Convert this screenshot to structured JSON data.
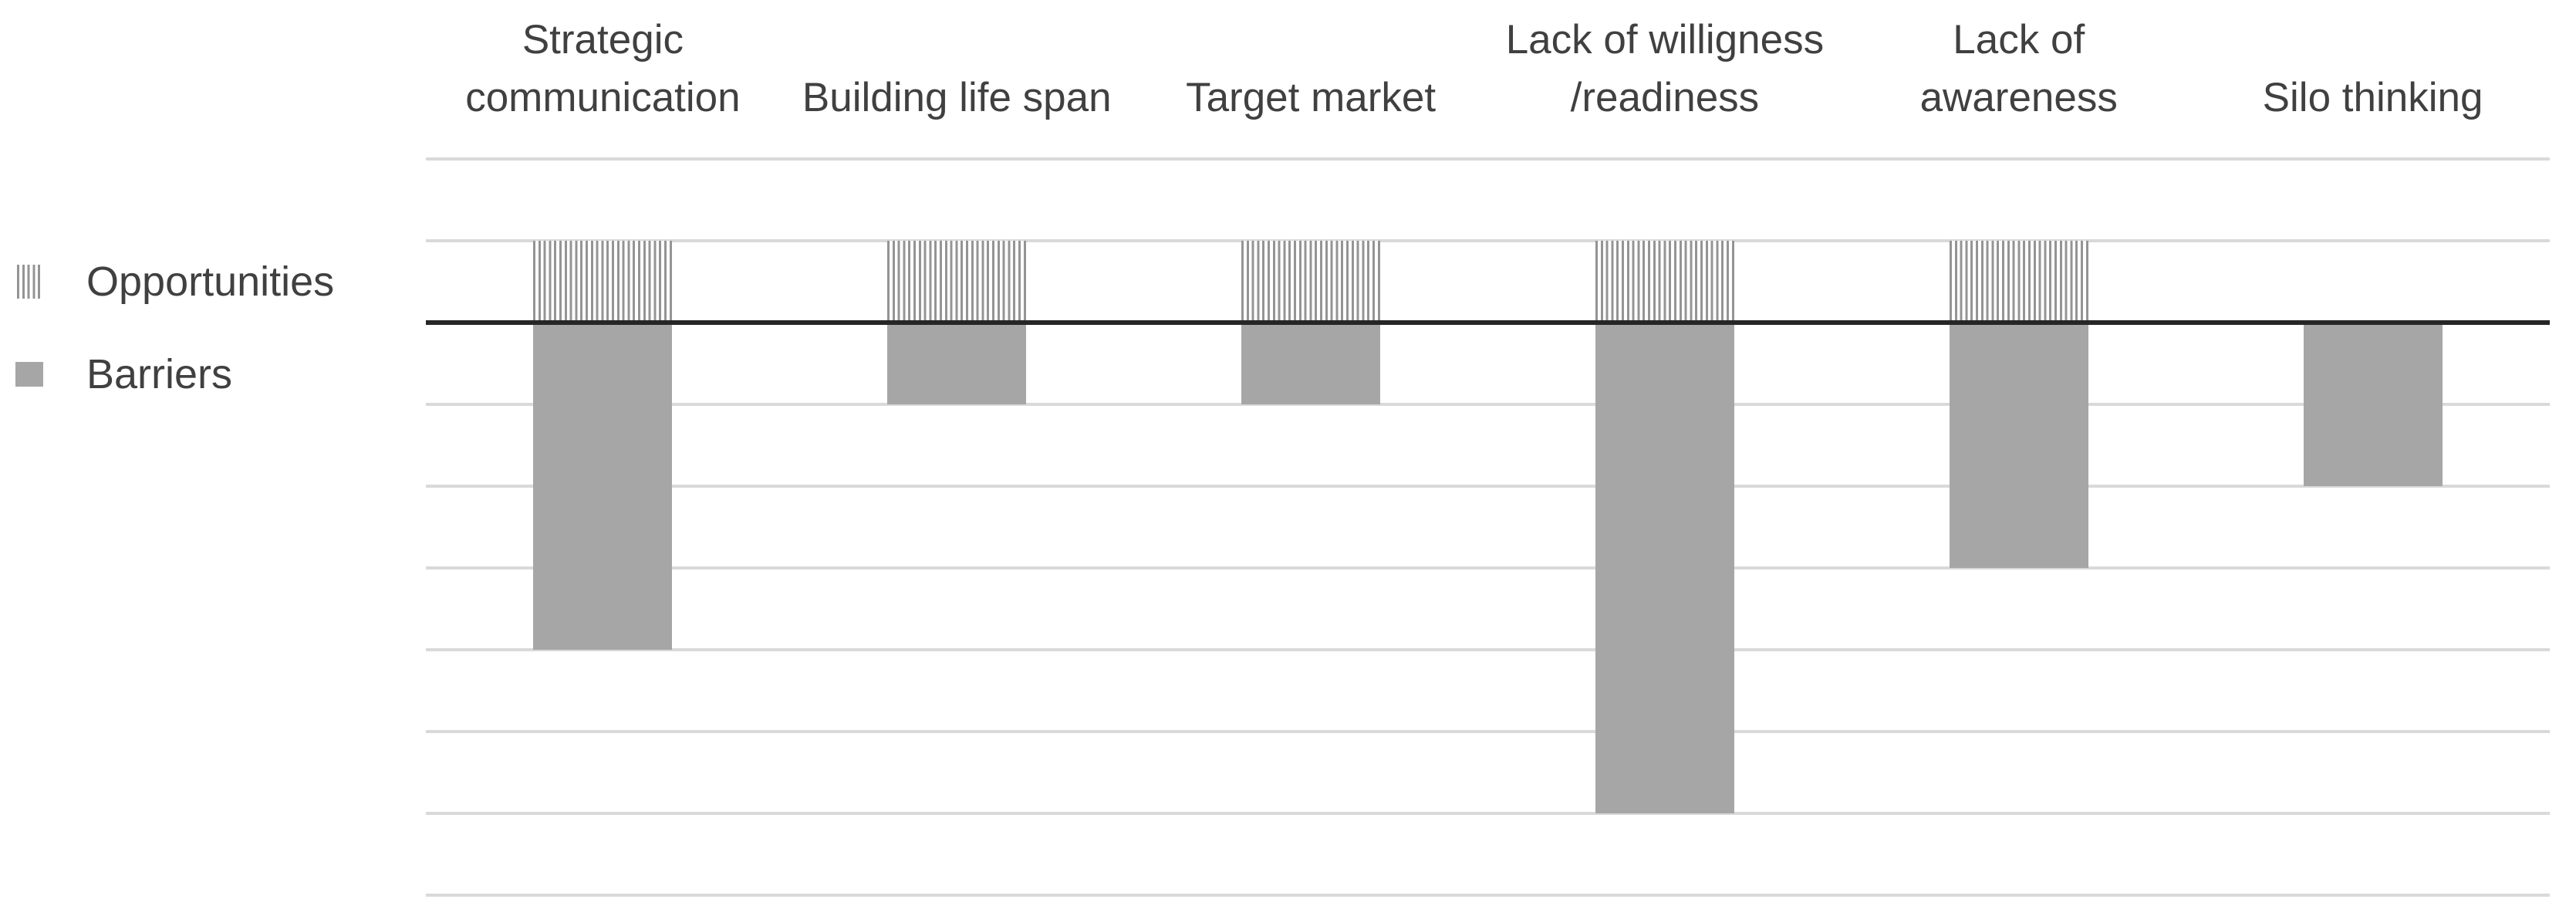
{
  "chart_data": {
    "type": "bar",
    "orientation": "vertical",
    "title": "",
    "xlabel": "",
    "ylabel": "",
    "grid": true,
    "legend_position": "left",
    "category_labels_position": "top",
    "categories": [
      "Strategic communication",
      "Building life span",
      "Target market",
      "Lack of willigness /readiness",
      "Lack of awareness",
      "Silo thinking"
    ],
    "category_label_lines": [
      [
        "Strategic",
        "communication"
      ],
      [
        "Building life span"
      ],
      [
        "Target market"
      ],
      [
        "Lack of willigness",
        "/readiness"
      ],
      [
        "Lack of",
        "awareness"
      ],
      [
        "Silo thinking"
      ]
    ],
    "series": [
      {
        "name": "Opportunities",
        "style": "striped",
        "values": [
          1,
          1,
          1,
          1,
          1,
          0
        ]
      },
      {
        "name": "Barriers",
        "style": "solid",
        "values": [
          -4,
          -1,
          -1,
          -6,
          -3,
          -2
        ]
      }
    ],
    "ylim": [
      -7,
      2
    ],
    "gridline_step": 1,
    "y_tick_labels_visible": false
  },
  "colors": {
    "solid_bar": "#a6a6a6",
    "stripe": "#949494",
    "stripe_bg": "#ffffff",
    "gridline": "#d9d9d9",
    "zero_line": "#262626",
    "label_text": "#404040",
    "background": "#ffffff"
  }
}
